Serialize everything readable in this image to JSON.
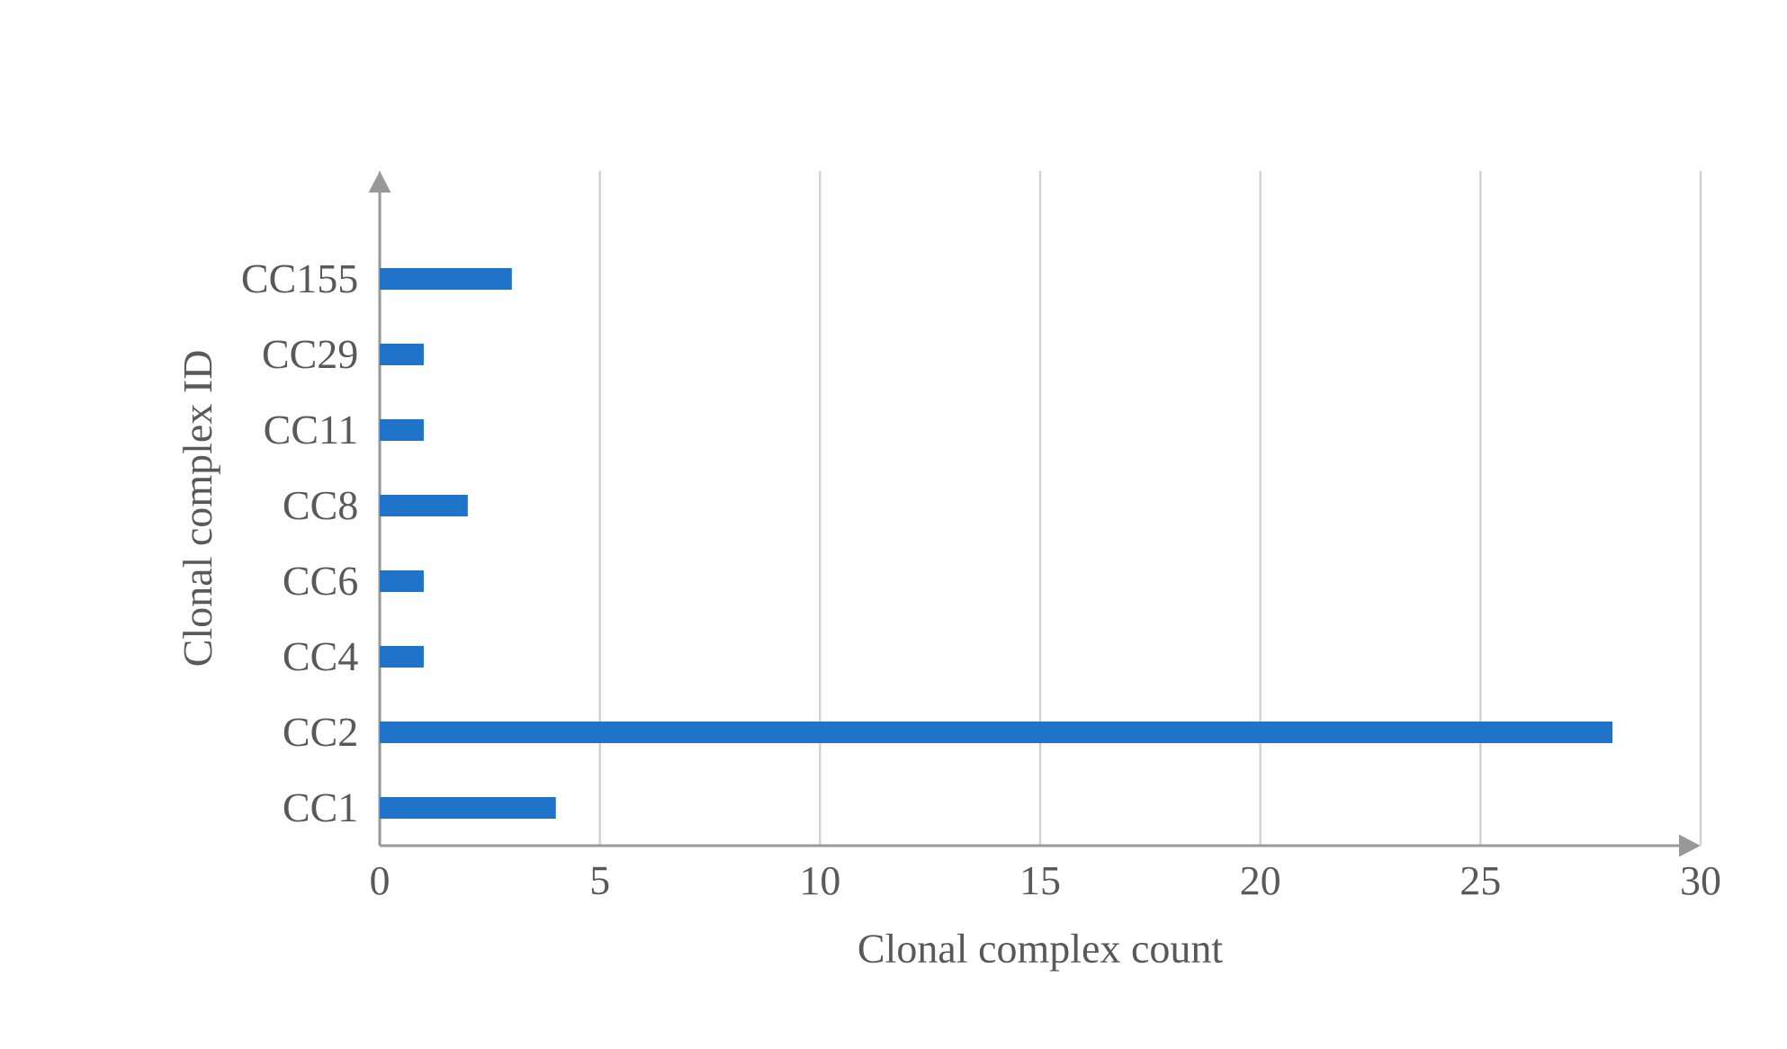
{
  "chart_data": {
    "type": "bar",
    "orientation": "horizontal",
    "xlabel": "Clonal complex count",
    "ylabel": "Clonal complex ID",
    "categories": [
      "CC155",
      "CC29",
      "CC11",
      "CC8",
      "CC6",
      "CC4",
      "CC2",
      "CC1"
    ],
    "values": [
      3,
      1,
      1,
      2,
      1,
      1,
      28,
      4
    ],
    "color": "#1f74c9",
    "xlim": [
      0,
      30
    ],
    "xticks": [
      0,
      5,
      10,
      15,
      20,
      25,
      30
    ],
    "grid": "x"
  }
}
